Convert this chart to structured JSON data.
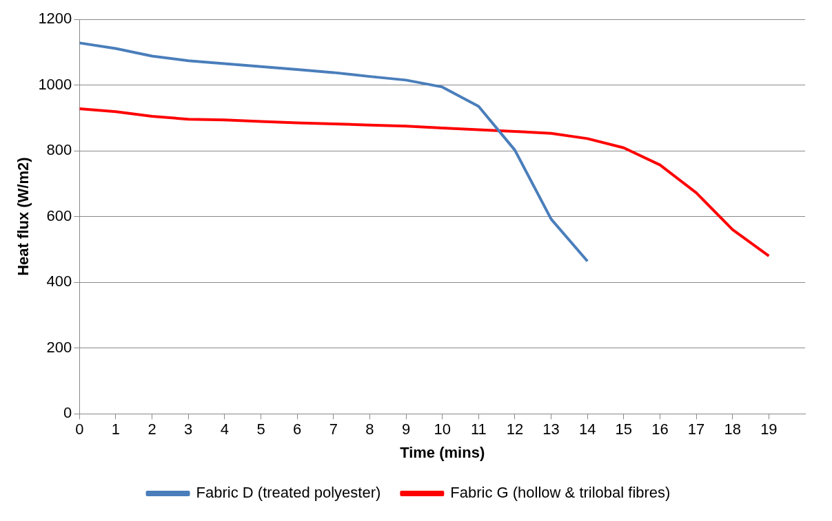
{
  "chart_data": {
    "type": "line",
    "xlabel": "Time (mins)",
    "ylabel": "Heat flux (W/m2)",
    "xlim": [
      0,
      20
    ],
    "xticks": [
      0,
      1,
      2,
      3,
      4,
      5,
      6,
      7,
      8,
      9,
      10,
      11,
      12,
      13,
      14,
      15,
      16,
      17,
      18,
      19
    ],
    "ylim": [
      0,
      1200
    ],
    "yticks": [
      0,
      200,
      400,
      600,
      800,
      1000,
      1200
    ],
    "grid": "y",
    "legend": "bottom",
    "marker": "none",
    "line_style": "solid",
    "series": [
      {
        "name": "Fabric D (treated polyester)",
        "color": "#4a7ebb",
        "x": [
          0,
          1,
          2,
          3,
          4,
          5,
          6,
          7,
          8,
          9,
          10,
          11,
          12,
          13,
          14
        ],
        "values": [
          1128,
          1111,
          1088,
          1074,
          1065,
          1056,
          1047,
          1038,
          1026,
          1015,
          994,
          935,
          802,
          592,
          464
        ]
      },
      {
        "name": "Fabric G (hollow & trilobal fibres)",
        "color": "#ff0000",
        "x": [
          0,
          1,
          2,
          3,
          4,
          5,
          6,
          7,
          8,
          9,
          10,
          11,
          12,
          13,
          14,
          15,
          16,
          17,
          18,
          19
        ],
        "values": [
          928,
          919,
          905,
          896,
          894,
          889,
          885,
          882,
          878,
          875,
          869,
          864,
          859,
          853,
          837,
          809,
          757,
          672,
          560,
          480
        ]
      }
    ]
  }
}
